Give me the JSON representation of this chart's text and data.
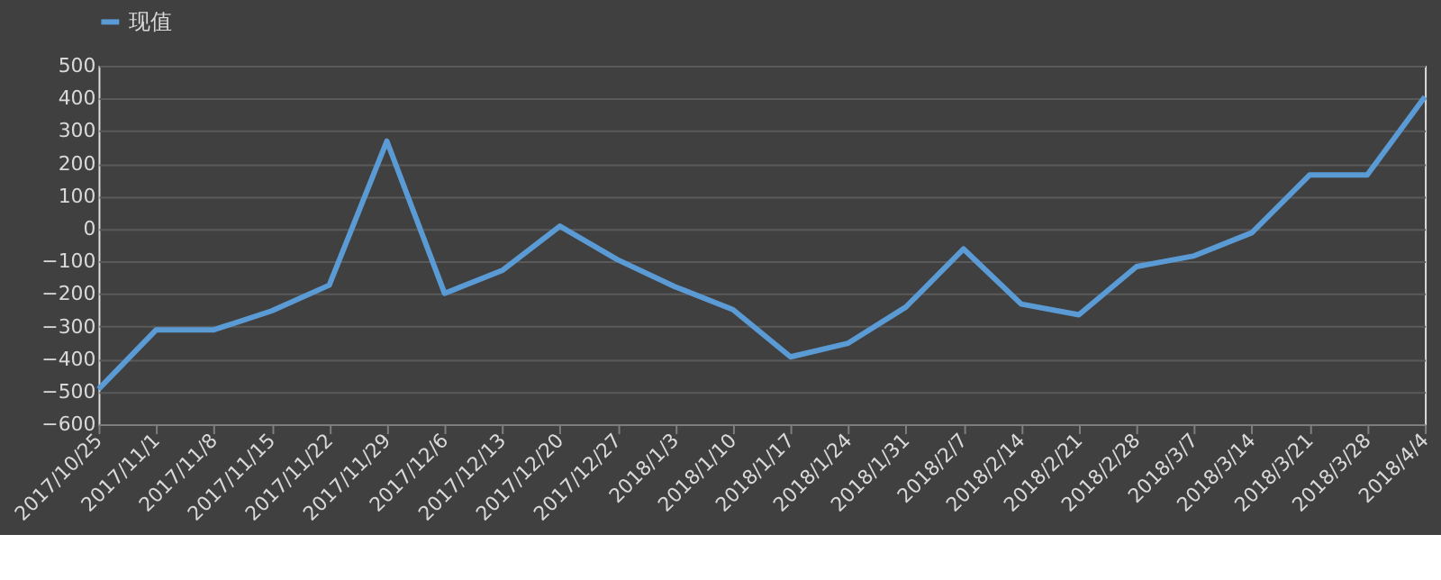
{
  "chart_data": {
    "type": "line",
    "categories": [
      "2017/10/25",
      "2017/11/1",
      "2017/11/8",
      "2017/11/15",
      "2017/11/22",
      "2017/11/29",
      "2017/12/6",
      "2017/12/13",
      "2017/12/20",
      "2017/12/27",
      "2018/1/3",
      "2018/1/10",
      "2018/1/17",
      "2018/1/24",
      "2018/1/31",
      "2018/2/7",
      "2018/2/14",
      "2018/2/21",
      "2018/2/28",
      "2018/3/7",
      "2018/3/14",
      "2018/3/21",
      "2018/3/28",
      "2018/4/4"
    ],
    "series": [
      {
        "name": "现值",
        "color": "#5b9bd5",
        "values": [
          -492,
          -310,
          -310,
          -252,
          -173,
          269,
          -198,
          -128,
          8,
          -95,
          -178,
          -248,
          -393,
          -351,
          -240,
          -62,
          -231,
          -264,
          -116,
          -83,
          -12,
          165,
          165,
          405
        ]
      }
    ],
    "ylim": [
      -600,
      500
    ],
    "yticks": [
      -600,
      -500,
      -400,
      -300,
      -200,
      -100,
      0,
      100,
      200,
      300,
      400,
      500
    ],
    "grid": "y",
    "legend": "top",
    "marker": "none",
    "line_style": "solid"
  }
}
